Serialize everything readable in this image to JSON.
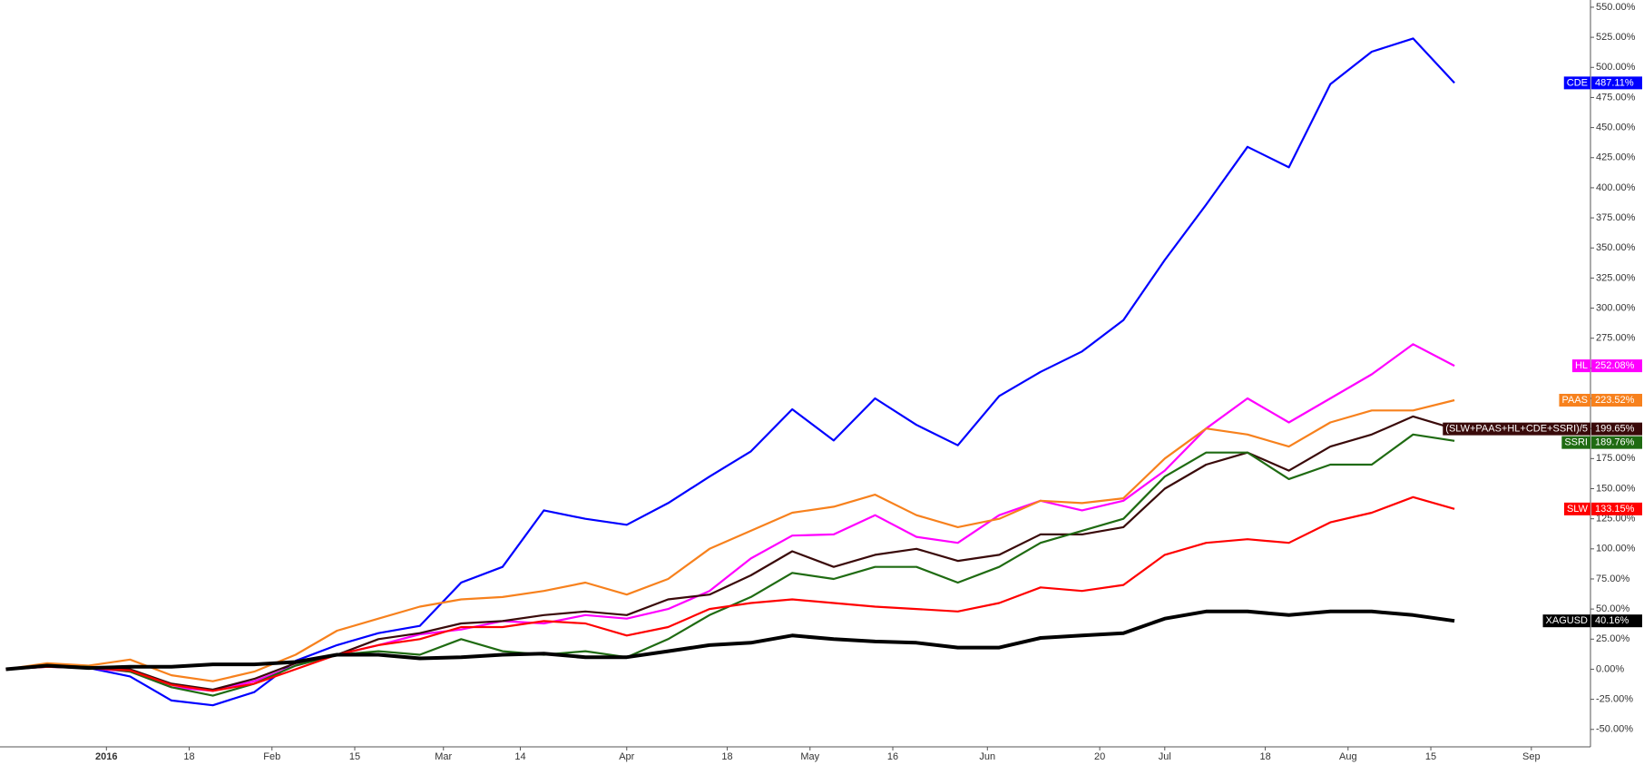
{
  "chart_data": {
    "type": "line",
    "x": [
      "2015-12-18",
      "2015-12-25",
      "2016-01-01",
      "2016-01-08",
      "2016-01-15",
      "2016-01-22",
      "2016-01-29",
      "2016-02-05",
      "2016-02-12",
      "2016-02-19",
      "2016-02-26",
      "2016-03-04",
      "2016-03-11",
      "2016-03-18",
      "2016-03-25",
      "2016-04-01",
      "2016-04-08",
      "2016-04-15",
      "2016-04-22",
      "2016-04-29",
      "2016-05-06",
      "2016-05-13",
      "2016-05-20",
      "2016-05-27",
      "2016-06-03",
      "2016-06-10",
      "2016-06-17",
      "2016-06-24",
      "2016-07-01",
      "2016-07-08",
      "2016-07-15",
      "2016-07-22",
      "2016-07-29",
      "2016-08-05",
      "2016-08-12",
      "2016-08-19"
    ],
    "xlim": [
      "2015-12-17",
      "2016-09-11"
    ],
    "xticks": [
      {
        "value": "2016-01-04",
        "label": "2016"
      },
      {
        "value": "2016-01-18",
        "label": "18"
      },
      {
        "value": "2016-02-01",
        "label": "Feb"
      },
      {
        "value": "2016-02-15",
        "label": "15"
      },
      {
        "value": "2016-03-01",
        "label": "Mar"
      },
      {
        "value": "2016-03-14",
        "label": "14"
      },
      {
        "value": "2016-04-01",
        "label": "Apr"
      },
      {
        "value": "2016-04-18",
        "label": "18"
      },
      {
        "value": "2016-05-02",
        "label": "May"
      },
      {
        "value": "2016-05-16",
        "label": "16"
      },
      {
        "value": "2016-06-01",
        "label": "Jun"
      },
      {
        "value": "2016-06-20",
        "label": "20"
      },
      {
        "value": "2016-07-01",
        "label": "Jul"
      },
      {
        "value": "2016-07-18",
        "label": "18"
      },
      {
        "value": "2016-08-01",
        "label": "Aug"
      },
      {
        "value": "2016-08-15",
        "label": "15"
      },
      {
        "value": "2016-09-01",
        "label": "Sep"
      }
    ],
    "ylim": [
      -64.5,
      556
    ],
    "yticks": [
      {
        "value": -50,
        "label": "-50.00%"
      },
      {
        "value": -25,
        "label": "-25.00%"
      },
      {
        "value": 0,
        "label": "0.00%"
      },
      {
        "value": 25,
        "label": "25.00%"
      },
      {
        "value": 50,
        "label": "50.00%"
      },
      {
        "value": 75,
        "label": "75.00%"
      },
      {
        "value": 100,
        "label": "100.00%"
      },
      {
        "value": 125,
        "label": "125.00%"
      },
      {
        "value": 150,
        "label": "150.00%"
      },
      {
        "value": 175,
        "label": "175.00%"
      },
      {
        "value": 200,
        "label": "200.00%"
      },
      {
        "value": 225,
        "label": "225.00%"
      },
      {
        "value": 250,
        "label": "250.00%"
      },
      {
        "value": 275,
        "label": "275.00%"
      },
      {
        "value": 300,
        "label": "300.00%"
      },
      {
        "value": 325,
        "label": "325.00%"
      },
      {
        "value": 350,
        "label": "350.00%"
      },
      {
        "value": 375,
        "label": "375.00%"
      },
      {
        "value": 400,
        "label": "400.00%"
      },
      {
        "value": 425,
        "label": "425.00%"
      },
      {
        "value": 450,
        "label": "450.00%"
      },
      {
        "value": 475,
        "label": "475.00%"
      },
      {
        "value": 500,
        "label": "500.00%"
      },
      {
        "value": 525,
        "label": "525.00%"
      },
      {
        "value": 550,
        "label": "550.00%"
      }
    ],
    "grid": false,
    "series": [
      {
        "name": "CDE",
        "color": "#0000ff",
        "end_label": "487.11%",
        "values": [
          0,
          2,
          1,
          -6,
          -26,
          -30,
          -19,
          7,
          20,
          30,
          36,
          72,
          85,
          132,
          125,
          120,
          138,
          160,
          181,
          216,
          190,
          225,
          203,
          186,
          227,
          247,
          264,
          290,
          340,
          386,
          434,
          417,
          486,
          513,
          524,
          487.11
        ]
      },
      {
        "name": "HL",
        "color": "#ff00ff",
        "end_label": "252.08%",
        "values": [
          0,
          3,
          1,
          -2,
          -15,
          -18,
          -10,
          3,
          12,
          20,
          29,
          33,
          40,
          38,
          45,
          42,
          50,
          65,
          92,
          111,
          112,
          128,
          110,
          105,
          128,
          140,
          132,
          140,
          165,
          200,
          225,
          205,
          225,
          245,
          270,
          252.08
        ]
      },
      {
        "name": "PAAS",
        "color": "#f7811d",
        "end_label": "223.52%",
        "values": [
          0,
          5,
          3,
          8,
          -5,
          -10,
          -2,
          12,
          32,
          42,
          52,
          58,
          60,
          65,
          72,
          62,
          75,
          100,
          115,
          130,
          135,
          145,
          128,
          118,
          125,
          140,
          138,
          142,
          175,
          200,
          195,
          185,
          205,
          215,
          215,
          223.52
        ]
      },
      {
        "name": "(SLW+PAAS+HL+CDE+SSRI)/5",
        "color": "#3a0a0a",
        "end_label": "199.65%",
        "values": [
          0,
          3,
          2,
          0,
          -12,
          -17,
          -8,
          5,
          12,
          25,
          30,
          38,
          40,
          45,
          48,
          45,
          58,
          62,
          78,
          98,
          85,
          95,
          100,
          90,
          95,
          112,
          112,
          118,
          150,
          170,
          180,
          165,
          185,
          195,
          210,
          199.65
        ]
      },
      {
        "name": "SSRI",
        "color": "#1f6b12",
        "end_label": "189.76%",
        "values": [
          0,
          3,
          2,
          -2,
          -15,
          -22,
          -12,
          3,
          12,
          15,
          12,
          25,
          15,
          12,
          15,
          10,
          25,
          45,
          60,
          80,
          75,
          85,
          85,
          72,
          85,
          105,
          115,
          125,
          160,
          180,
          180,
          158,
          170,
          170,
          195,
          189.76
        ]
      },
      {
        "name": "SLW",
        "color": "#ff0000",
        "end_label": "133.15%",
        "values": [
          0,
          2,
          1,
          -1,
          -13,
          -18,
          -12,
          0,
          12,
          20,
          25,
          35,
          35,
          40,
          38,
          28,
          35,
          50,
          55,
          58,
          55,
          52,
          50,
          48,
          55,
          68,
          65,
          70,
          95,
          105,
          108,
          105,
          122,
          130,
          143,
          133.15
        ]
      },
      {
        "name": "XAGUSD",
        "color": "#000000",
        "end_label": "40.16%",
        "values": [
          0,
          3,
          1,
          2,
          2,
          4,
          4,
          6,
          12,
          12,
          9,
          10,
          12,
          13,
          10,
          10,
          15,
          20,
          22,
          28,
          25,
          23,
          22,
          18,
          18,
          26,
          28,
          30,
          42,
          48,
          48,
          45,
          48,
          48,
          45,
          40.16
        ]
      }
    ]
  }
}
